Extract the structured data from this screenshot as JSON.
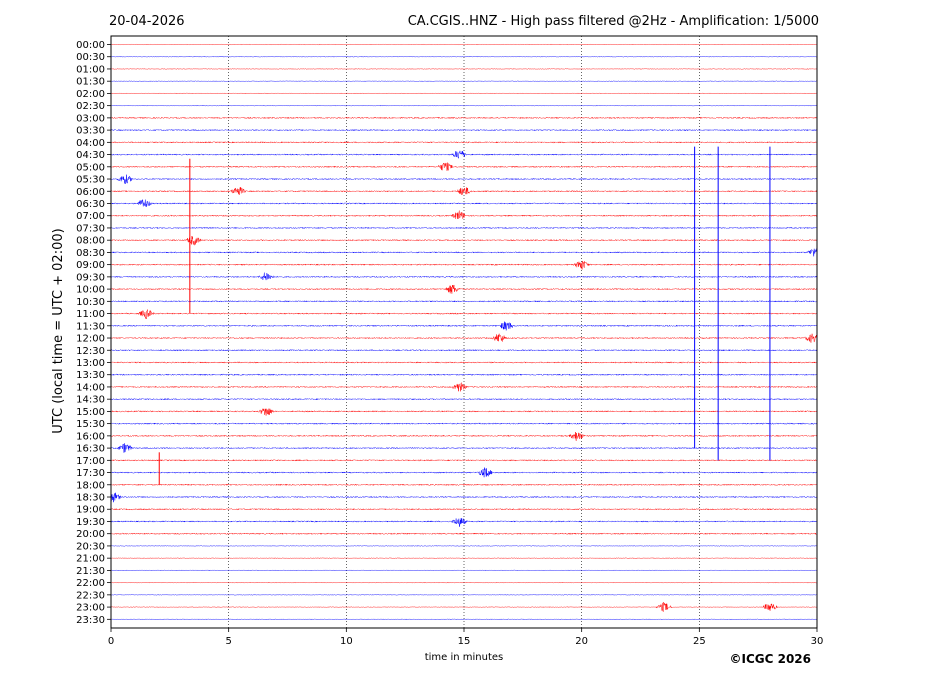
{
  "chart_data": {
    "type": "line",
    "date": "20-04-2026",
    "title": "CA.CGIS..HNZ - High pass filtered @2Hz - Amplification: 1/5000",
    "xlabel": "time in minutes",
    "ylabel": "UTC (local time = UTC + 02:00)",
    "copyright": "©ICGC 2026",
    "xlim": [
      0,
      30
    ],
    "x_ticks": [
      0,
      5,
      10,
      15,
      20,
      25,
      30
    ],
    "x_tick_labels": [
      "0",
      "5",
      "10",
      "15",
      "20",
      "25",
      "30"
    ],
    "y_tick_labels": [
      "00:00",
      "00:30",
      "01:00",
      "01:30",
      "02:00",
      "02:30",
      "03:00",
      "03:30",
      "04:00",
      "04:30",
      "05:00",
      "05:30",
      "06:00",
      "06:30",
      "07:00",
      "07:30",
      "08:00",
      "08:30",
      "09:00",
      "09:30",
      "10:00",
      "10:30",
      "11:00",
      "11:30",
      "12:00",
      "12:30",
      "13:00",
      "13:30",
      "14:00",
      "14:30",
      "15:00",
      "15:30",
      "16:00",
      "16:30",
      "17:00",
      "17:30",
      "18:00",
      "18:30",
      "19:00",
      "19:30",
      "20:00",
      "20:30",
      "21:00",
      "21:30",
      "22:00",
      "22:30",
      "23:00",
      "23:30"
    ],
    "grid": "vertical dotted at 5-minute intervals",
    "colors": {
      "red": "#ff0000",
      "blue": "#0000ff"
    },
    "trace_color_pattern": "alternating red / blue per 30-minute row",
    "transients": [
      {
        "row": "04:30",
        "minute": 14.8
      },
      {
        "row": "05:00",
        "minute": 14.2
      },
      {
        "row": "05:30",
        "minute": 0.6
      },
      {
        "row": "06:00",
        "minute": 5.4
      },
      {
        "row": "06:00",
        "minute": 15.0
      },
      {
        "row": "06:30",
        "minute": 1.4
      },
      {
        "row": "07:00",
        "minute": 14.8
      },
      {
        "row": "08:00",
        "minute": 3.5
      },
      {
        "row": "08:30",
        "minute": 29.9
      },
      {
        "row": "09:00",
        "minute": 20.0
      },
      {
        "row": "09:30",
        "minute": 6.6
      },
      {
        "row": "10:00",
        "minute": 14.5
      },
      {
        "row": "11:00",
        "minute": 1.5
      },
      {
        "row": "11:30",
        "minute": 16.8
      },
      {
        "row": "12:00",
        "minute": 16.5
      },
      {
        "row": "12:00",
        "minute": 29.8
      },
      {
        "row": "14:00",
        "minute": 14.8
      },
      {
        "row": "15:00",
        "minute": 6.6
      },
      {
        "row": "16:00",
        "minute": 19.8
      },
      {
        "row": "16:30",
        "minute": 0.6
      },
      {
        "row": "17:30",
        "minute": 15.9
      },
      {
        "row": "18:30",
        "minute": 0.1
      },
      {
        "row": "19:30",
        "minute": 14.8
      },
      {
        "row": "23:00",
        "minute": 23.5
      },
      {
        "row": "23:00",
        "minute": 28.0
      }
    ],
    "spikes": [
      {
        "row": "05:00",
        "minute": 3.35,
        "color": "red",
        "span_rows": 12
      },
      {
        "row": "17:00",
        "minute": 2.05,
        "color": "red",
        "span_rows": 2
      },
      {
        "row": "04:30",
        "minute": 24.8,
        "color": "blue",
        "span_rows": 24
      },
      {
        "row": "04:30",
        "minute": 25.8,
        "color": "blue",
        "span_rows": 25
      },
      {
        "row": "04:30",
        "minute": 28.0,
        "color": "blue",
        "span_rows": 25
      }
    ]
  }
}
